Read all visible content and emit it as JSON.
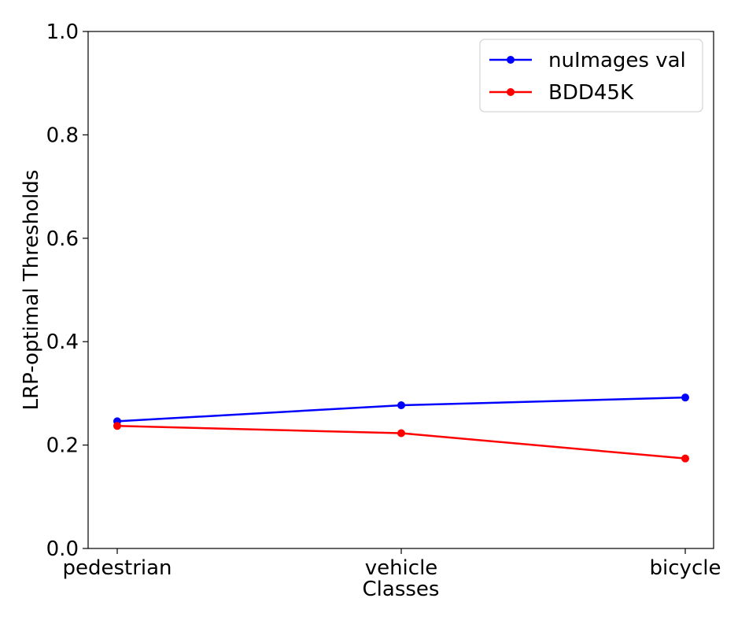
{
  "chart_data": {
    "type": "line",
    "title": "",
    "xlabel": "Classes",
    "ylabel": "LRP-optimal Thresholds",
    "categories": [
      "pedestrian",
      "vehicle",
      "bicycle"
    ],
    "ylim": [
      0.0,
      1.0
    ],
    "yticks": [
      "0.0",
      "0.2",
      "0.4",
      "0.6",
      "0.8",
      "1.0"
    ],
    "grid": false,
    "legend_position": "top-right",
    "series": [
      {
        "name": "nuImages val",
        "color": "#0000ff",
        "values": [
          0.246,
          0.277,
          0.292
        ]
      },
      {
        "name": "BDD45K",
        "color": "#ff0000",
        "values": [
          0.237,
          0.223,
          0.174
        ]
      }
    ]
  }
}
